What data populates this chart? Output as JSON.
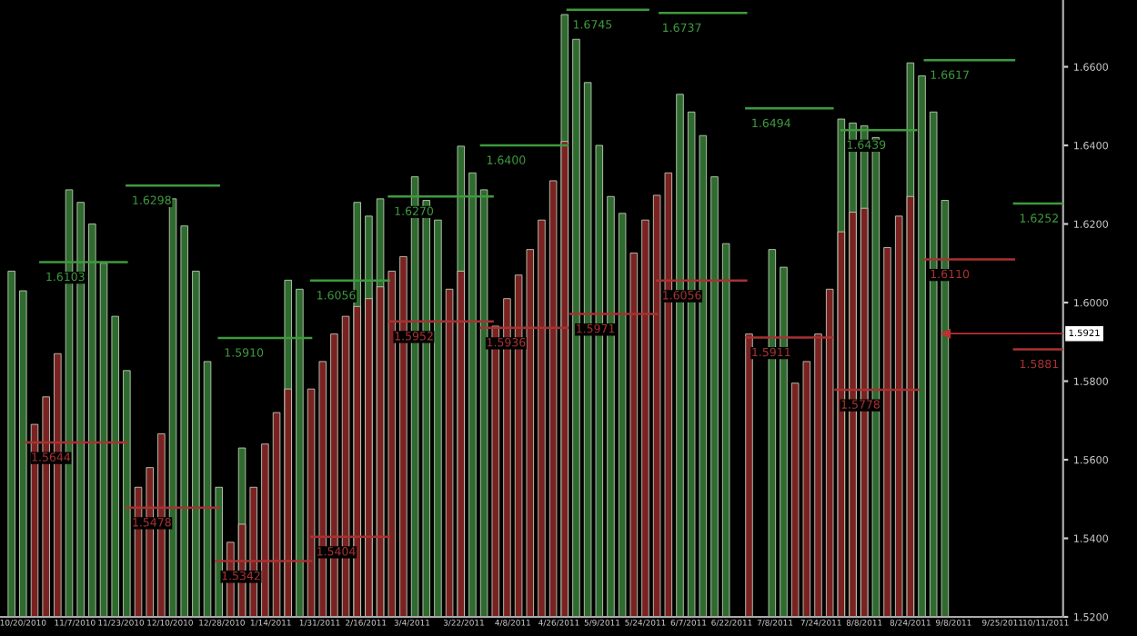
{
  "chart_data": {
    "type": "bar",
    "xlim": [
      "2010-10-12",
      "2011-10-16"
    ],
    "xticks": [
      {
        "value": "2010-10-20",
        "label": "10/20/2010"
      },
      {
        "value": "2010-11-07",
        "label": "11/7/2010"
      },
      {
        "value": "2010-11-23",
        "label": "11/23/2010"
      },
      {
        "value": "2010-12-10",
        "label": "12/10/2010"
      },
      {
        "value": "2010-12-28",
        "label": "12/28/2010"
      },
      {
        "value": "2011-01-14",
        "label": "1/14/2011"
      },
      {
        "value": "2011-01-31",
        "label": "1/31/2011"
      },
      {
        "value": "2011-02-16",
        "label": "2/16/2011"
      },
      {
        "value": "2011-03-04",
        "label": "3/4/2011"
      },
      {
        "value": "2011-03-22",
        "label": "3/22/2011"
      },
      {
        "value": "2011-04-08",
        "label": "4/8/2011"
      },
      {
        "value": "2011-04-24",
        "label": "4/26/2011"
      },
      {
        "value": "2011-05-09",
        "label": "5/9/2011"
      },
      {
        "value": "2011-05-24",
        "label": "5/24/2011"
      },
      {
        "value": "2011-06-08",
        "label": "6/7/2011"
      },
      {
        "value": "2011-06-23",
        "label": "6/22/2011"
      },
      {
        "value": "2011-07-08",
        "label": "7/8/2011"
      },
      {
        "value": "2011-07-24",
        "label": "7/24/2011"
      },
      {
        "value": "2011-08-08",
        "label": "8/8/2011"
      },
      {
        "value": "2011-08-24",
        "label": "8/24/2011"
      },
      {
        "value": "2011-09-08",
        "label": "9/8/2011"
      },
      {
        "value": "2011-09-25",
        "label": "9/25/2011"
      },
      {
        "value": "2011-10-10",
        "label": "10/11/2011"
      }
    ],
    "ylim": [
      1.52,
      1.677
    ],
    "yticks": [
      {
        "value": 1.52,
        "label": "1.5200"
      },
      {
        "value": 1.54,
        "label": "1.5400"
      },
      {
        "value": 1.56,
        "label": "1.5600"
      },
      {
        "value": 1.58,
        "label": "1.5800"
      },
      {
        "value": 1.6,
        "label": "1.6000"
      },
      {
        "value": 1.62,
        "label": "1.6200"
      },
      {
        "value": 1.64,
        "label": "1.6400"
      },
      {
        "value": 1.66,
        "label": "1.6600"
      }
    ],
    "grid": false,
    "legend": false,
    "series": [
      {
        "color": "#2f6a2f",
        "x": [
          "2010-10-16",
          "2010-10-20",
          "2010-11-05",
          "2010-11-09",
          "2010-11-13",
          "2010-11-17",
          "2010-11-21",
          "2010-11-25",
          "2010-12-11",
          "2010-12-15",
          "2010-12-19",
          "2010-12-23",
          "2010-12-27",
          "2011-01-04",
          "2011-01-20",
          "2011-01-24",
          "2011-02-13",
          "2011-02-17",
          "2011-02-21",
          "2011-03-05",
          "2011-03-09",
          "2011-03-13",
          "2011-03-21",
          "2011-03-25",
          "2011-03-29",
          "2011-04-26",
          "2011-04-30",
          "2011-05-04",
          "2011-05-08",
          "2011-05-12",
          "2011-05-16",
          "2011-06-05",
          "2011-06-09",
          "2011-06-13",
          "2011-06-17",
          "2011-06-21",
          "2011-07-07",
          "2011-07-11",
          "2011-07-31",
          "2011-08-04",
          "2011-08-08",
          "2011-08-12",
          "2011-08-24",
          "2011-08-28",
          "2011-09-01",
          "2011-09-05"
        ],
        "values": [
          1.608,
          1.603,
          1.6287,
          1.6255,
          1.62,
          1.61,
          1.5965,
          1.5827,
          1.6264,
          1.6195,
          1.608,
          1.585,
          1.553,
          1.563,
          1.6057,
          1.6034,
          1.6255,
          1.622,
          1.6264,
          1.632,
          1.626,
          1.621,
          1.6398,
          1.633,
          1.6287,
          1.6733,
          1.667,
          1.656,
          1.64,
          1.627,
          1.6227,
          1.653,
          1.6485,
          1.6425,
          1.632,
          1.615,
          1.6135,
          1.609,
          1.6467,
          1.6457,
          1.645,
          1.642,
          1.661,
          1.6577,
          1.6485,
          1.626
        ]
      },
      {
        "color": "#7a2222",
        "x": [
          "2010-10-24",
          "2010-10-28",
          "2010-11-01",
          "2010-11-29",
          "2010-12-03",
          "2010-12-07",
          "2010-12-31",
          "2011-01-04",
          "2011-01-08",
          "2011-01-12",
          "2011-01-16",
          "2011-01-20",
          "2011-01-28",
          "2011-02-01",
          "2011-02-05",
          "2011-02-09",
          "2011-02-13",
          "2011-02-17",
          "2011-02-21",
          "2011-02-25",
          "2011-03-01",
          "2011-03-17",
          "2011-03-21",
          "2011-04-02",
          "2011-04-06",
          "2011-04-10",
          "2011-04-14",
          "2011-04-18",
          "2011-04-22",
          "2011-04-26",
          "2011-05-20",
          "2011-05-24",
          "2011-05-28",
          "2011-06-01",
          "2011-06-29",
          "2011-07-15",
          "2011-07-19",
          "2011-07-23",
          "2011-07-27",
          "2011-07-31",
          "2011-08-04",
          "2011-08-08",
          "2011-08-16",
          "2011-08-20",
          "2011-08-24"
        ],
        "values": [
          1.569,
          1.576,
          1.587,
          1.553,
          1.558,
          1.5666,
          1.539,
          1.5436,
          1.553,
          1.564,
          1.572,
          1.578,
          1.578,
          1.585,
          1.592,
          1.5965,
          1.599,
          1.601,
          1.604,
          1.608,
          1.6117,
          1.6034,
          1.608,
          1.594,
          1.601,
          1.607,
          1.6135,
          1.621,
          1.631,
          1.641,
          1.6126,
          1.621,
          1.6273,
          1.633,
          1.592,
          1.5795,
          1.585,
          1.592,
          1.6034,
          1.618,
          1.623,
          1.624,
          1.614,
          1.622,
          1.627
        ]
      },
      {
        "type": "line",
        "color": "#3e9a3e",
        "x": [
          "2010-10-26",
          "2010-11-25"
        ],
        "values": [
          1.6103,
          1.6103
        ]
      },
      {
        "type": "line",
        "color": "#3e9a3e",
        "x": [
          "2010-11-25",
          "2010-12-27"
        ],
        "values": [
          1.6298,
          1.6298
        ]
      },
      {
        "type": "line",
        "color": "#3e9a3e",
        "x": [
          "2010-12-27",
          "2011-01-28"
        ],
        "values": [
          1.591,
          1.591
        ]
      },
      {
        "type": "line",
        "color": "#3e9a3e",
        "x": [
          "2011-01-28",
          "2011-02-24"
        ],
        "values": [
          1.6056,
          1.6056
        ]
      },
      {
        "type": "line",
        "color": "#3e9a3e",
        "x": [
          "2011-02-24",
          "2011-04-01"
        ],
        "values": [
          1.627,
          1.627
        ]
      },
      {
        "type": "line",
        "color": "#3e9a3e",
        "x": [
          "2011-03-28",
          "2011-04-27"
        ],
        "values": [
          1.64,
          1.64
        ]
      },
      {
        "type": "line",
        "color": "#3e9a3e",
        "x": [
          "2011-04-27",
          "2011-05-25"
        ],
        "values": [
          1.6745,
          1.6745
        ]
      },
      {
        "type": "line",
        "color": "#3e9a3e",
        "x": [
          "2011-05-29",
          "2011-06-28"
        ],
        "values": [
          1.6737,
          1.6737
        ]
      },
      {
        "type": "line",
        "color": "#3e9a3e",
        "x": [
          "2011-06-28",
          "2011-07-28"
        ],
        "values": [
          1.6494,
          1.6494
        ]
      },
      {
        "type": "line",
        "color": "#3e9a3e",
        "x": [
          "2011-07-31",
          "2011-08-26"
        ],
        "values": [
          1.6439,
          1.6439
        ]
      },
      {
        "type": "line",
        "color": "#3e9a3e",
        "x": [
          "2011-08-29",
          "2011-09-29"
        ],
        "values": [
          1.6617,
          1.6617
        ]
      },
      {
        "type": "line",
        "color": "#3e9a3e",
        "x": [
          "2011-09-29",
          "2011-10-16"
        ],
        "values": [
          1.6252,
          1.6252
        ]
      },
      {
        "type": "line",
        "color": "#a83232",
        "x": [
          "2010-10-21",
          "2010-11-25"
        ],
        "values": [
          1.5644,
          1.5644
        ]
      },
      {
        "type": "line",
        "color": "#a83232",
        "x": [
          "2010-11-25",
          "2010-12-27"
        ],
        "values": [
          1.5478,
          1.5478
        ]
      },
      {
        "type": "line",
        "color": "#a83232",
        "x": [
          "2010-12-26",
          "2011-01-28"
        ],
        "values": [
          1.5342,
          1.5342
        ]
      },
      {
        "type": "line",
        "color": "#a83232",
        "x": [
          "2011-01-28",
          "2011-02-24"
        ],
        "values": [
          1.5404,
          1.5404
        ]
      },
      {
        "type": "line",
        "color": "#a83232",
        "x": [
          "2011-02-24",
          "2011-04-01"
        ],
        "values": [
          1.5952,
          1.5952
        ]
      },
      {
        "type": "line",
        "color": "#a83232",
        "x": [
          "2011-03-28",
          "2011-04-27"
        ],
        "values": [
          1.5936,
          1.5936
        ]
      },
      {
        "type": "line",
        "color": "#a83232",
        "x": [
          "2011-04-28",
          "2011-05-28"
        ],
        "values": [
          1.5971,
          1.5971
        ]
      },
      {
        "type": "line",
        "color": "#a83232",
        "x": [
          "2011-05-28",
          "2011-06-28"
        ],
        "values": [
          1.6056,
          1.6056
        ]
      },
      {
        "type": "line",
        "color": "#a83232",
        "x": [
          "2011-06-28",
          "2011-07-28"
        ],
        "values": [
          1.5911,
          1.5911
        ]
      },
      {
        "type": "line",
        "color": "#a83232",
        "x": [
          "2011-07-29",
          "2011-08-27"
        ],
        "values": [
          1.5778,
          1.5778
        ]
      },
      {
        "type": "line",
        "color": "#a83232",
        "x": [
          "2011-08-29",
          "2011-09-29"
        ],
        "values": [
          1.611,
          1.611
        ]
      },
      {
        "type": "line",
        "color": "#a83232",
        "x": [
          "2011-09-29",
          "2011-10-16"
        ],
        "values": [
          1.5881,
          1.5881
        ]
      }
    ],
    "ref_lines": [
      {
        "axis": "y",
        "value": 1.5921,
        "label": "1.5921",
        "color": "#c03030"
      }
    ],
    "annotations": [
      {
        "text": "1.6103",
        "x": "2010-10-26",
        "y": 1.6103
      },
      {
        "text": "1.6298",
        "x": "2010-11-25",
        "y": 1.6298
      },
      {
        "text": "1.5910",
        "x": "2010-12-27",
        "y": 1.591
      },
      {
        "text": "1.6056",
        "x": "2011-01-28",
        "y": 1.6056
      },
      {
        "text": "1.6270",
        "x": "2011-02-24",
        "y": 1.627
      },
      {
        "text": "1.6400",
        "x": "2011-03-28",
        "y": 1.64
      },
      {
        "text": "1.6745",
        "x": "2011-04-27",
        "y": 1.6745
      },
      {
        "text": "1.6737",
        "x": "2011-05-28",
        "y": 1.6737
      },
      {
        "text": "1.6494",
        "x": "2011-06-28",
        "y": 1.6494
      },
      {
        "text": "1.6439",
        "x": "2011-07-31",
        "y": 1.6439
      },
      {
        "text": "1.6617",
        "x": "2011-08-29",
        "y": 1.6617
      },
      {
        "text": "1.6252",
        "x": "2011-09-29",
        "y": 1.6252
      },
      {
        "text": "1.5644",
        "x": "2010-10-21",
        "y": 1.5644
      },
      {
        "text": "1.5478",
        "x": "2010-11-25",
        "y": 1.5478
      },
      {
        "text": "1.5342",
        "x": "2010-12-26",
        "y": 1.5342
      },
      {
        "text": "1.5404",
        "x": "2011-01-28",
        "y": 1.5404
      },
      {
        "text": "1.5952",
        "x": "2011-02-24",
        "y": 1.5952
      },
      {
        "text": "1.5936",
        "x": "2011-03-28",
        "y": 1.5936
      },
      {
        "text": "1.5971",
        "x": "2011-04-28",
        "y": 1.5971
      },
      {
        "text": "1.6056",
        "x": "2011-05-28",
        "y": 1.6056
      },
      {
        "text": "1.5911",
        "x": "2011-06-28",
        "y": 1.5911
      },
      {
        "text": "1.5778",
        "x": "2011-07-29",
        "y": 1.5778
      },
      {
        "text": "1.6110",
        "x": "2011-08-29",
        "y": 1.611
      },
      {
        "text": "1.5881",
        "x": "2011-09-29",
        "y": 1.5881
      }
    ]
  }
}
